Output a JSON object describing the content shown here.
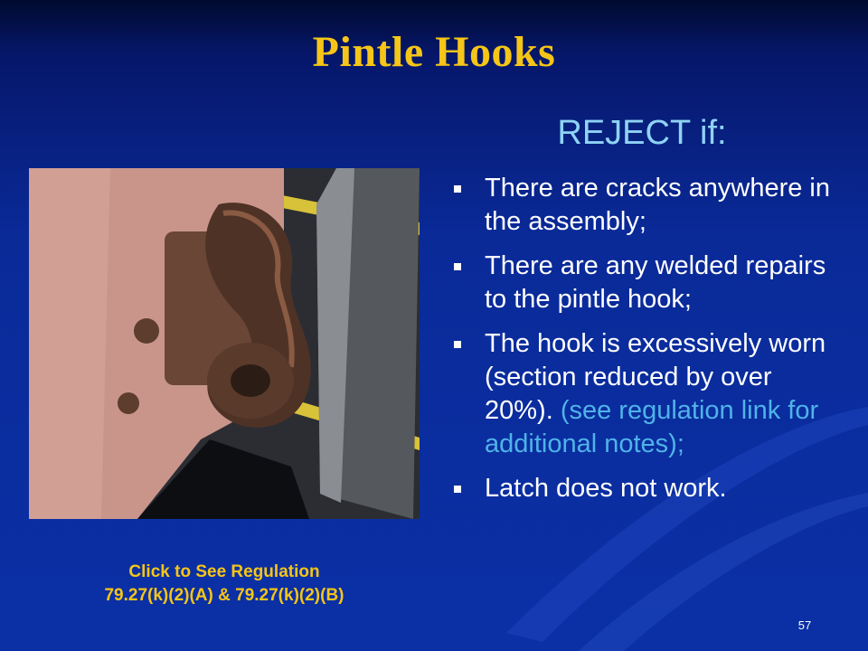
{
  "slide": {
    "title": "Pintle Hooks",
    "subtitle": "REJECT if:",
    "bullets": [
      {
        "text": "There are cracks anywhere in the assembly;",
        "note": ""
      },
      {
        "text": "There are any welded repairs to the pintle hook;",
        "note": ""
      },
      {
        "text": "The hook is excessively worn (section reduced by over 20%). ",
        "note": "(see regulation link for additional notes);"
      },
      {
        "text": "Latch does not work.",
        "note": ""
      }
    ],
    "regulation_link": {
      "line1": "Click to See Regulation",
      "line2": "79.27(k)(2)(A) & 79.27(k)(2)(B)"
    },
    "page_number": "57"
  },
  "colors": {
    "title": "#f5c518",
    "subtitle": "#8fd3f5",
    "body_text": "#ffffff",
    "note_text": "#4fb3e8",
    "background": "#0b30a6"
  },
  "photo": {
    "subject": "rusty pintle hook mounted on a truck frame"
  }
}
